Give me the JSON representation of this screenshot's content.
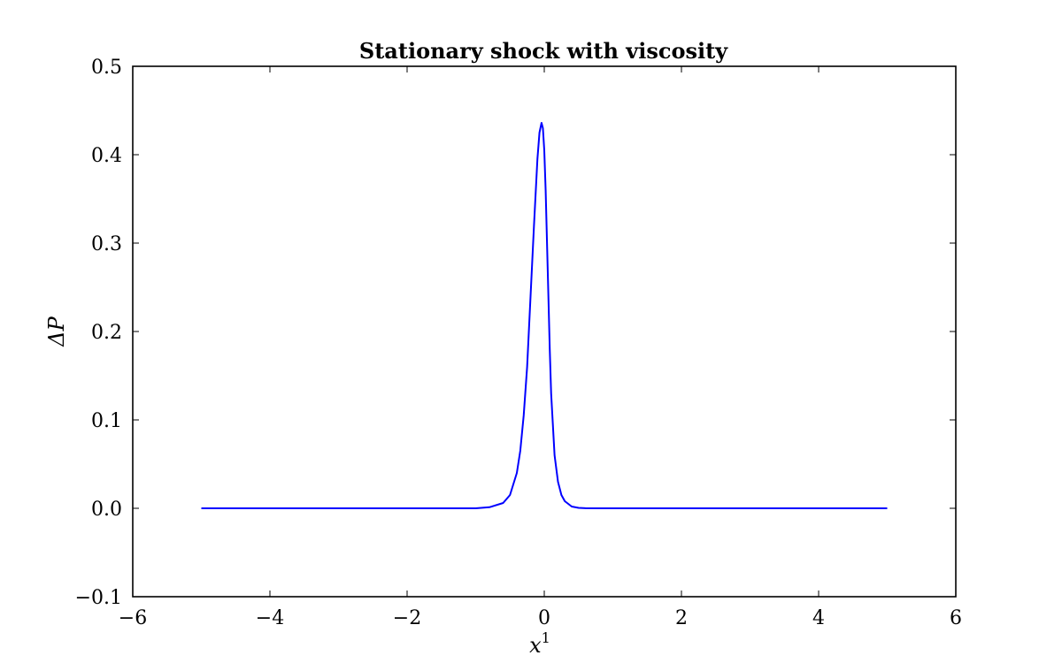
{
  "chart_data": {
    "type": "line",
    "title": "Stationary shock with viscosity",
    "xlabel": "x",
    "xlabel_superscript": "1",
    "ylabel": "ΔP",
    "xlim": [
      -6,
      6
    ],
    "ylim": [
      -0.1,
      0.5
    ],
    "x_ticks": [
      -6,
      -4,
      -2,
      0,
      2,
      4,
      6
    ],
    "x_tick_labels": [
      "−6",
      "−4",
      "−2",
      "0",
      "2",
      "4",
      "6"
    ],
    "y_ticks": [
      -0.1,
      0.0,
      0.1,
      0.2,
      0.3,
      0.4,
      0.5
    ],
    "y_tick_labels": [
      "−0.1",
      "0.0",
      "0.1",
      "0.2",
      "0.3",
      "0.4",
      "0.5"
    ],
    "grid": false,
    "legend": "none",
    "series": [
      {
        "color": "#0000ff",
        "x": [
          -5.0,
          -4.0,
          -3.0,
          -2.0,
          -1.0,
          -0.8,
          -0.6,
          -0.5,
          -0.4,
          -0.35,
          -0.3,
          -0.25,
          -0.2,
          -0.15,
          -0.1,
          -0.07,
          -0.04,
          -0.02,
          0.0,
          0.02,
          0.05,
          0.08,
          0.1,
          0.15,
          0.2,
          0.25,
          0.3,
          0.4,
          0.5,
          0.6,
          0.8,
          1.0,
          2.0,
          3.0,
          4.0,
          5.0
        ],
        "y": [
          0.0,
          0.0,
          0.0,
          0.0,
          0.0,
          0.0012,
          0.006,
          0.015,
          0.04,
          0.065,
          0.105,
          0.16,
          0.24,
          0.32,
          0.395,
          0.425,
          0.436,
          0.43,
          0.405,
          0.36,
          0.27,
          0.18,
          0.13,
          0.06,
          0.03,
          0.015,
          0.008,
          0.002,
          0.0005,
          0.0001,
          0.0,
          0.0,
          0.0,
          0.0,
          0.0,
          0.0
        ]
      }
    ]
  }
}
